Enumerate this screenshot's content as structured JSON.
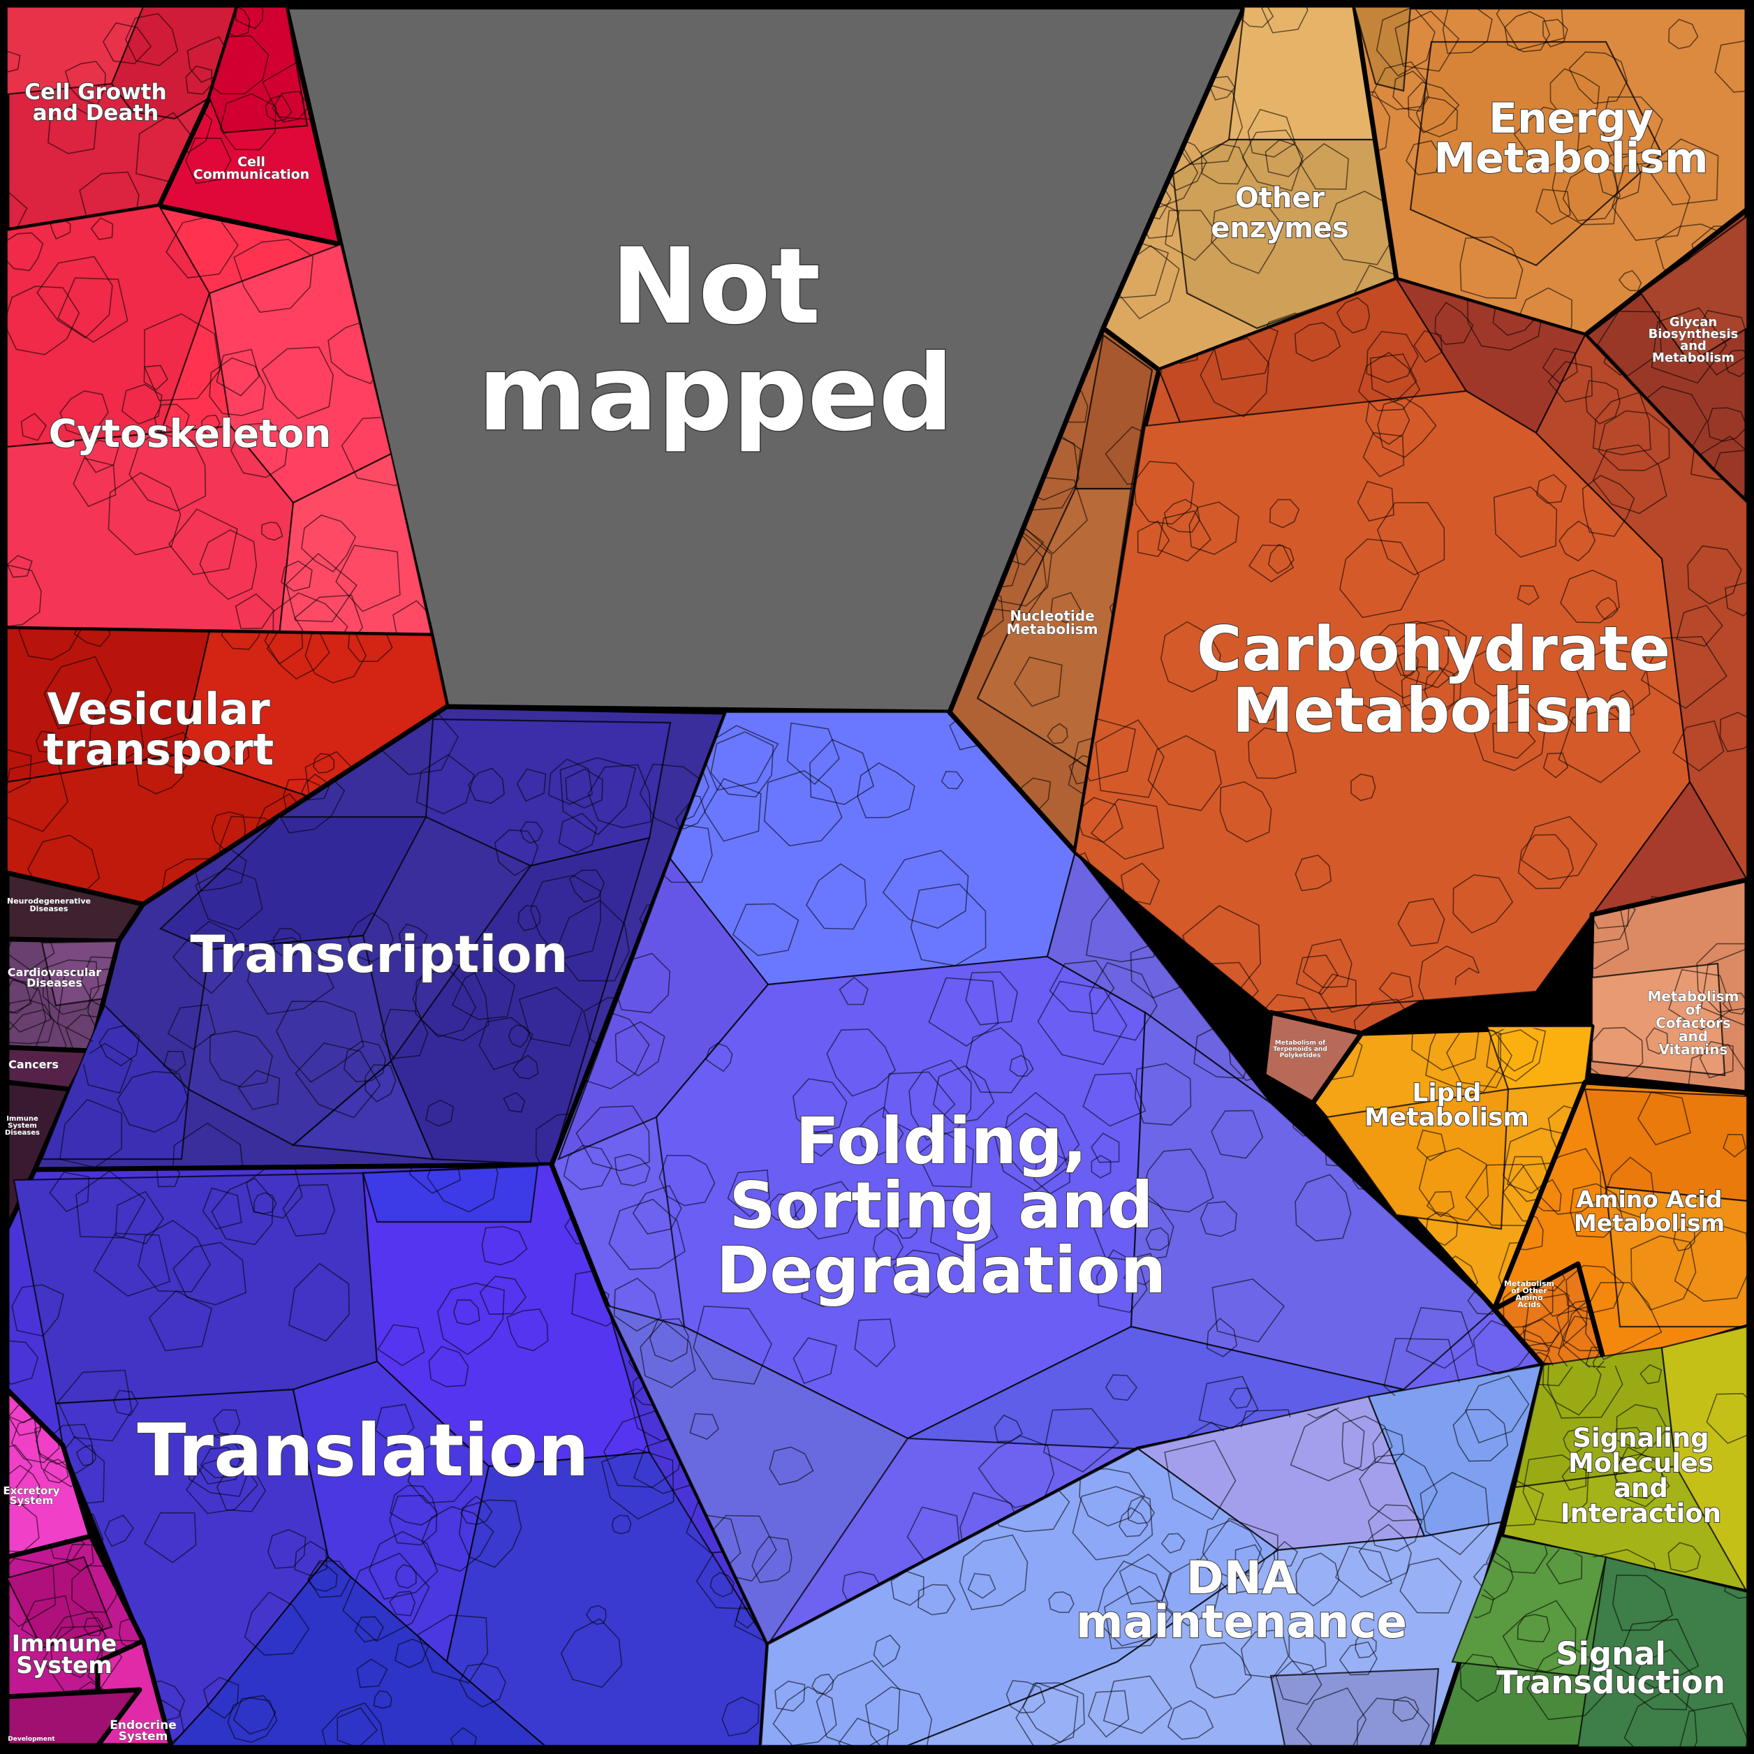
{
  "title": "",
  "regions": [
    {
      "key": "not_mapped",
      "lines": [
        "Not",
        "mapped"
      ],
      "color": "#666666"
    },
    {
      "key": "cell_growth",
      "lines": [
        "Cell Growth",
        "and Death"
      ],
      "color": "#dc2340"
    },
    {
      "key": "cell_comm",
      "lines": [
        "Cell",
        "Communication"
      ],
      "color": "#df0838"
    },
    {
      "key": "cytoskeleton",
      "lines": [
        "Cytoskeleton"
      ],
      "color": "#ff3350"
    },
    {
      "key": "vesicular",
      "lines": [
        "Vesicular",
        "transport"
      ],
      "color": "#c81a10"
    },
    {
      "key": "neuro",
      "lines": [
        "Neurodegenerative",
        "Diseases"
      ],
      "color": "#3e2230"
    },
    {
      "key": "cardio",
      "lines": [
        "Cardiovascular",
        "Diseases"
      ],
      "color": "#6a4070"
    },
    {
      "key": "cancers",
      "lines": [
        "Cancers"
      ],
      "color": "#55234a"
    },
    {
      "key": "immune_dis",
      "lines": [
        "Immune",
        "System",
        "Diseases"
      ],
      "color": "#3a1a30"
    },
    {
      "key": "transcription",
      "lines": [
        "Transcription"
      ],
      "color": "#3a2e9c"
    },
    {
      "key": "translation",
      "lines": [
        "Translation"
      ],
      "color": "#4a34d8"
    },
    {
      "key": "folding",
      "lines": [
        "Folding,",
        "Sorting and",
        "Degradation"
      ],
      "color": "#6e62f0"
    },
    {
      "key": "dna",
      "lines": [
        "DNA",
        "maintenance"
      ],
      "color": "#90a4f0"
    },
    {
      "key": "other_enz",
      "lines": [
        "Other",
        "enzymes"
      ],
      "color": "#dca860"
    },
    {
      "key": "energy",
      "lines": [
        "Energy",
        "Metabolism"
      ],
      "color": "#dc8a40"
    },
    {
      "key": "glycan",
      "lines": [
        "Glycan",
        "Biosynthesis",
        "and",
        "Metabolism"
      ],
      "color": "#9a3828"
    },
    {
      "key": "nucleotide",
      "lines": [
        "Nucleotide",
        "Metabolism"
      ],
      "color": "#b06234"
    },
    {
      "key": "carbo",
      "lines": [
        "Carbohydrate",
        "Metabolism"
      ],
      "color": "#cc5428"
    },
    {
      "key": "cofactors",
      "lines": [
        "Metabolism",
        "of",
        "Cofactors",
        "and",
        "Vitamins"
      ],
      "color": "#dc8a64"
    },
    {
      "key": "terpenoids",
      "lines": [
        "Metabolism of",
        "Terpenoids and",
        "Polyketides"
      ],
      "color": "#b86a58"
    },
    {
      "key": "lipid",
      "lines": [
        "Lipid",
        "Metabolism"
      ],
      "color": "#f4a414"
    },
    {
      "key": "amino",
      "lines": [
        "Amino Acid",
        "Metabolism"
      ],
      "color": "#f4880c"
    },
    {
      "key": "other_amino",
      "lines": [
        "Metabolism",
        "of Other",
        "Amino",
        "Acids"
      ],
      "color": "#e87818"
    },
    {
      "key": "signaling",
      "lines": [
        "Signaling",
        "Molecules",
        "and",
        "Interaction"
      ],
      "color": "#a4b418"
    },
    {
      "key": "signal_trans",
      "lines": [
        "Signal",
        "Transduction"
      ],
      "color": "#4a8a3c"
    },
    {
      "key": "excretory",
      "lines": [
        "Excretory",
        "System"
      ],
      "color": "#f040c8"
    },
    {
      "key": "immune_sys",
      "lines": [
        "Immune",
        "System"
      ],
      "color": "#c01890"
    },
    {
      "key": "endocrine",
      "lines": [
        "Endocrine",
        "System"
      ],
      "color": "#e02aa8"
    },
    {
      "key": "development",
      "lines": [
        "Development"
      ],
      "color": "#a01070"
    }
  ]
}
